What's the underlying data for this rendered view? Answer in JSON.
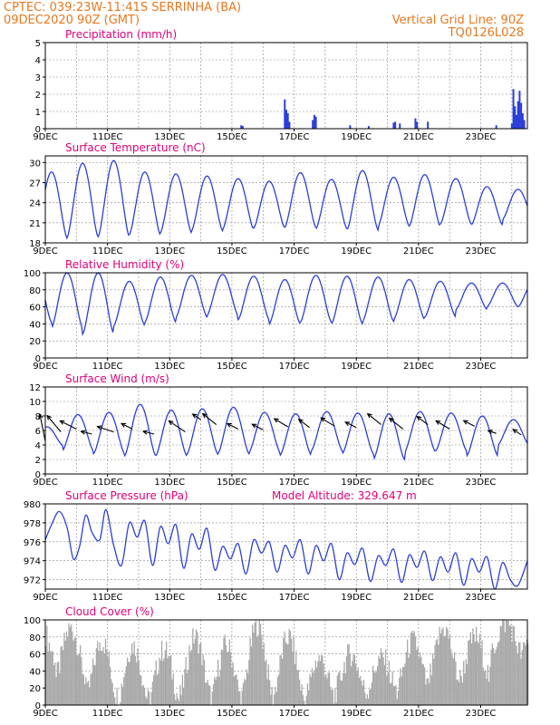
{
  "header": {
    "line1_left": "CPTEC:   039:23W-11:41S  SERRINHA (BA)",
    "line2_left": "09DEC2020 90Z (GMT)",
    "line1_right": "Vertical Grid Line: 90Z",
    "line2_right": "TQ0126L028"
  },
  "colors": {
    "header_text": "#e8781e",
    "title_text": "#e0007a",
    "line": "#2b3fd9",
    "cloud_fill": "#a9a9a9",
    "grid": "#888888",
    "wind_arrow": "#000000"
  },
  "x_ticks": [
    "9DEC",
    "11DEC",
    "13DEC",
    "15DEC",
    "17DEC",
    "19DEC",
    "21DEC",
    "23DEC"
  ],
  "chart_data": [
    {
      "type": "bar",
      "title": "Precipitation (mm/h)",
      "x_unit": "days since 9DEC 00Z",
      "xlim": [
        0,
        15.5
      ],
      "ylim": [
        0,
        5
      ],
      "yticks": [
        0,
        1,
        2,
        3,
        4,
        5
      ],
      "grid": true,
      "bars": [
        {
          "x": 6.3,
          "y": 0.2
        },
        {
          "x": 6.35,
          "y": 0.15
        },
        {
          "x": 7.7,
          "y": 1.7
        },
        {
          "x": 7.75,
          "y": 1.1
        },
        {
          "x": 7.8,
          "y": 0.9
        },
        {
          "x": 7.85,
          "y": 0.4
        },
        {
          "x": 8.6,
          "y": 0.5
        },
        {
          "x": 8.65,
          "y": 0.8
        },
        {
          "x": 8.7,
          "y": 0.7
        },
        {
          "x": 9.8,
          "y": 0.2
        },
        {
          "x": 10.4,
          "y": 0.15
        },
        {
          "x": 11.2,
          "y": 0.35
        },
        {
          "x": 11.25,
          "y": 0.4
        },
        {
          "x": 11.4,
          "y": 0.3
        },
        {
          "x": 11.9,
          "y": 0.6
        },
        {
          "x": 11.95,
          "y": 0.4
        },
        {
          "x": 12.3,
          "y": 0.4
        },
        {
          "x": 14.5,
          "y": 0.2
        },
        {
          "x": 15.0,
          "y": 0.3
        },
        {
          "x": 15.05,
          "y": 2.3
        },
        {
          "x": 15.1,
          "y": 1.3
        },
        {
          "x": 15.15,
          "y": 0.8
        },
        {
          "x": 15.2,
          "y": 1.6
        },
        {
          "x": 15.25,
          "y": 2.2
        },
        {
          "x": 15.3,
          "y": 1.5
        },
        {
          "x": 15.35,
          "y": 0.9
        },
        {
          "x": 15.4,
          "y": 0.5
        }
      ]
    },
    {
      "type": "line",
      "title": "Surface Temperature (nC)",
      "x_unit": "days since 9DEC 00Z",
      "xlim": [
        0,
        15.5
      ],
      "ylim": [
        18,
        31
      ],
      "yticks": [
        18,
        21,
        24,
        27,
        30
      ],
      "grid": true,
      "phase": 0.7,
      "cycles": [
        {
          "min": 18.7,
          "max": 28.6
        },
        {
          "min": 18.8,
          "max": 29.9
        },
        {
          "min": 18.9,
          "max": 30.3
        },
        {
          "min": 19.2,
          "max": 28.6
        },
        {
          "min": 19.5,
          "max": 28.3
        },
        {
          "min": 19.8,
          "max": 28.0
        },
        {
          "min": 20.0,
          "max": 27.6
        },
        {
          "min": 20.2,
          "max": 27.2
        },
        {
          "min": 20.3,
          "max": 28.5
        },
        {
          "min": 20.1,
          "max": 27.5
        },
        {
          "min": 19.9,
          "max": 28.8
        },
        {
          "min": 20.5,
          "max": 27.8
        },
        {
          "min": 20.5,
          "max": 28.2
        },
        {
          "min": 20.8,
          "max": 27.6
        },
        {
          "min": 20.7,
          "max": 26.4
        },
        {
          "min": 21.5,
          "max": 26.0
        }
      ]
    },
    {
      "type": "line",
      "title": "Relative Humidity (%)",
      "x_unit": "days since 9DEC 00Z",
      "xlim": [
        0,
        15.5
      ],
      "ylim": [
        0,
        100
      ],
      "yticks": [
        0,
        20,
        40,
        60,
        80,
        100
      ],
      "grid": true,
      "phase": 0.2,
      "cycles": [
        {
          "min": 42,
          "max": 100
        },
        {
          "min": 35,
          "max": 100
        },
        {
          "min": 28,
          "max": 100
        },
        {
          "min": 38,
          "max": 90
        },
        {
          "min": 42,
          "max": 95
        },
        {
          "min": 48,
          "max": 97
        },
        {
          "min": 50,
          "max": 98
        },
        {
          "min": 45,
          "max": 96
        },
        {
          "min": 40,
          "max": 92
        },
        {
          "min": 42,
          "max": 97
        },
        {
          "min": 40,
          "max": 96
        },
        {
          "min": 43,
          "max": 95
        },
        {
          "min": 45,
          "max": 92
        },
        {
          "min": 48,
          "max": 90
        },
        {
          "min": 57,
          "max": 88
        },
        {
          "min": 60,
          "max": 88
        }
      ]
    },
    {
      "type": "line",
      "title": "Surface Wind (m/s)",
      "x_unit": "days since 9DEC 00Z",
      "xlim": [
        0,
        15.5
      ],
      "ylim": [
        0,
        12
      ],
      "yticks": [
        0,
        2,
        4,
        6,
        8,
        10,
        12
      ],
      "grid": true,
      "phase": 0.55,
      "cycles": [
        {
          "min": 4.0,
          "max": 6.5
        },
        {
          "min": 3.2,
          "max": 8.2
        },
        {
          "min": 2.8,
          "max": 8.5
        },
        {
          "min": 2.5,
          "max": 9.6
        },
        {
          "min": 2.5,
          "max": 8.8
        },
        {
          "min": 2.7,
          "max": 9.0
        },
        {
          "min": 2.8,
          "max": 9.2
        },
        {
          "min": 3.0,
          "max": 8.5
        },
        {
          "min": 2.6,
          "max": 8.3
        },
        {
          "min": 3.2,
          "max": 8.6
        },
        {
          "min": 2.8,
          "max": 8.4
        },
        {
          "min": 2.0,
          "max": 8.3
        },
        {
          "min": 3.0,
          "max": 8.6
        },
        {
          "min": 3.2,
          "max": 8.4
        },
        {
          "min": 2.5,
          "max": 8.0
        },
        {
          "min": 4.0,
          "max": 7.5
        }
      ],
      "arrows": [
        {
          "x": 0.0,
          "y": 4.5,
          "dx": -0.2,
          "dy": 1.0
        },
        {
          "x": 0.5,
          "y": 5.8,
          "dx": -0.5,
          "dy": 0.6
        },
        {
          "x": 1.0,
          "y": 6.2,
          "dx": -0.6,
          "dy": 0.3
        },
        {
          "x": 1.5,
          "y": 5.5,
          "dx": -0.4,
          "dy": 0.1
        },
        {
          "x": 2.2,
          "y": 5.8,
          "dx": -0.6,
          "dy": 0.2
        },
        {
          "x": 2.8,
          "y": 6.2,
          "dx": -0.4,
          "dy": 0.2
        },
        {
          "x": 3.5,
          "y": 5.5,
          "dx": -0.4,
          "dy": 0.1
        },
        {
          "x": 4.5,
          "y": 5.8,
          "dx": -0.6,
          "dy": 0.4
        },
        {
          "x": 5.0,
          "y": 7.5,
          "dx": -0.3,
          "dy": 0.2
        },
        {
          "x": 5.5,
          "y": 6.8,
          "dx": -0.5,
          "dy": 0.4
        },
        {
          "x": 6.2,
          "y": 6.2,
          "dx": -0.4,
          "dy": 0.2
        },
        {
          "x": 7.0,
          "y": 6.1,
          "dx": -0.4,
          "dy": 0.2
        },
        {
          "x": 7.8,
          "y": 6.5,
          "dx": -0.5,
          "dy": 0.3
        },
        {
          "x": 8.5,
          "y": 6.4,
          "dx": -0.4,
          "dy": 0.3
        },
        {
          "x": 9.3,
          "y": 6.6,
          "dx": -0.5,
          "dy": 0.3
        },
        {
          "x": 10.0,
          "y": 6.4,
          "dx": -0.4,
          "dy": 0.2
        },
        {
          "x": 10.8,
          "y": 6.8,
          "dx": -0.5,
          "dy": 0.4
        },
        {
          "x": 11.5,
          "y": 6.2,
          "dx": -0.5,
          "dy": 0.4
        },
        {
          "x": 12.3,
          "y": 6.8,
          "dx": -0.4,
          "dy": 0.3
        },
        {
          "x": 13.0,
          "y": 6.2,
          "dx": -0.5,
          "dy": 0.3
        },
        {
          "x": 13.8,
          "y": 6.6,
          "dx": -0.4,
          "dy": 0.2
        },
        {
          "x": 14.5,
          "y": 5.6,
          "dx": -0.3,
          "dy": 0.1
        },
        {
          "x": 15.3,
          "y": 5.4,
          "dx": -0.3,
          "dy": 0.2
        }
      ]
    },
    {
      "type": "line",
      "title": "Surface Pressure (hPa)",
      "annotation": "Model Altitude: 329.647 m",
      "x_unit": "days since 9DEC 00Z",
      "xlim": [
        0,
        15.5
      ],
      "ylim": [
        971,
        980
      ],
      "yticks": [
        972,
        974,
        976,
        978,
        980
      ],
      "grid": true,
      "phase": 0.9,
      "points": [
        {
          "x": 0.0,
          "y": 976.2
        },
        {
          "x": 0.2,
          "y": 977.8
        },
        {
          "x": 0.45,
          "y": 979.2
        },
        {
          "x": 0.7,
          "y": 977.5
        },
        {
          "x": 0.9,
          "y": 974.2
        },
        {
          "x": 1.1,
          "y": 975.5
        },
        {
          "x": 1.3,
          "y": 978.8
        },
        {
          "x": 1.5,
          "y": 977.0
        },
        {
          "x": 1.75,
          "y": 976.2
        },
        {
          "x": 1.95,
          "y": 979.4
        },
        {
          "x": 2.2,
          "y": 975.6
        },
        {
          "x": 2.45,
          "y": 973.5
        },
        {
          "x": 2.7,
          "y": 978.0
        },
        {
          "x": 2.95,
          "y": 976.5
        },
        {
          "x": 3.2,
          "y": 978.2
        },
        {
          "x": 3.45,
          "y": 973.5
        },
        {
          "x": 3.7,
          "y": 977.6
        },
        {
          "x": 3.95,
          "y": 975.8
        },
        {
          "x": 4.2,
          "y": 977.8
        },
        {
          "x": 4.45,
          "y": 973.2
        },
        {
          "x": 4.7,
          "y": 976.8
        },
        {
          "x": 4.95,
          "y": 975.2
        },
        {
          "x": 5.2,
          "y": 977.4
        },
        {
          "x": 5.45,
          "y": 973.0
        },
        {
          "x": 5.7,
          "y": 975.5
        },
        {
          "x": 5.95,
          "y": 974.2
        },
        {
          "x": 6.2,
          "y": 975.8
        },
        {
          "x": 6.45,
          "y": 972.6
        },
        {
          "x": 6.7,
          "y": 976.2
        },
        {
          "x": 6.95,
          "y": 974.8
        },
        {
          "x": 7.2,
          "y": 976.0
        },
        {
          "x": 7.45,
          "y": 972.8
        },
        {
          "x": 7.7,
          "y": 975.6
        },
        {
          "x": 7.95,
          "y": 974.3
        },
        {
          "x": 8.2,
          "y": 976.2
        },
        {
          "x": 8.45,
          "y": 972.6
        },
        {
          "x": 8.7,
          "y": 975.6
        },
        {
          "x": 8.95,
          "y": 974.0
        },
        {
          "x": 9.2,
          "y": 975.8
        },
        {
          "x": 9.45,
          "y": 972.0
        },
        {
          "x": 9.7,
          "y": 974.8
        },
        {
          "x": 9.95,
          "y": 973.6
        },
        {
          "x": 10.2,
          "y": 975.3
        },
        {
          "x": 10.45,
          "y": 971.8
        },
        {
          "x": 10.7,
          "y": 974.5
        },
        {
          "x": 10.95,
          "y": 973.5
        },
        {
          "x": 11.2,
          "y": 975.2
        },
        {
          "x": 11.45,
          "y": 971.7
        },
        {
          "x": 11.7,
          "y": 974.6
        },
        {
          "x": 11.95,
          "y": 973.3
        },
        {
          "x": 12.2,
          "y": 975.0
        },
        {
          "x": 12.45,
          "y": 971.9
        },
        {
          "x": 12.7,
          "y": 974.4
        },
        {
          "x": 12.95,
          "y": 972.8
        },
        {
          "x": 13.2,
          "y": 974.8
        },
        {
          "x": 13.45,
          "y": 971.4
        },
        {
          "x": 13.7,
          "y": 974.2
        },
        {
          "x": 13.95,
          "y": 972.8
        },
        {
          "x": 14.2,
          "y": 974.4
        },
        {
          "x": 14.45,
          "y": 971.0
        },
        {
          "x": 14.7,
          "y": 973.8
        },
        {
          "x": 14.95,
          "y": 972.0
        },
        {
          "x": 15.2,
          "y": 971.4
        },
        {
          "x": 15.5,
          "y": 974.0
        }
      ]
    },
    {
      "type": "area",
      "title": "Cloud Cover (%)",
      "x_unit": "days since 9DEC 00Z",
      "xlim": [
        0,
        15.5
      ],
      "ylim": [
        0,
        100
      ],
      "yticks": [
        0,
        20,
        40,
        60,
        80,
        100
      ],
      "grid": true,
      "phase": 0.3,
      "cycles": [
        {
          "min": 55,
          "max": 95
        },
        {
          "min": 30,
          "max": 90
        },
        {
          "min": 10,
          "max": 75
        },
        {
          "min": 5,
          "max": 70
        },
        {
          "min": 5,
          "max": 65
        },
        {
          "min": 10,
          "max": 80
        },
        {
          "min": 5,
          "max": 70
        },
        {
          "min": 10,
          "max": 95
        },
        {
          "min": 10,
          "max": 80
        },
        {
          "min": 5,
          "max": 55
        },
        {
          "min": 15,
          "max": 60
        },
        {
          "min": 15,
          "max": 55
        },
        {
          "min": 20,
          "max": 75
        },
        {
          "min": 30,
          "max": 90
        },
        {
          "min": 30,
          "max": 80
        },
        {
          "min": 60,
          "max": 97
        }
      ]
    }
  ]
}
